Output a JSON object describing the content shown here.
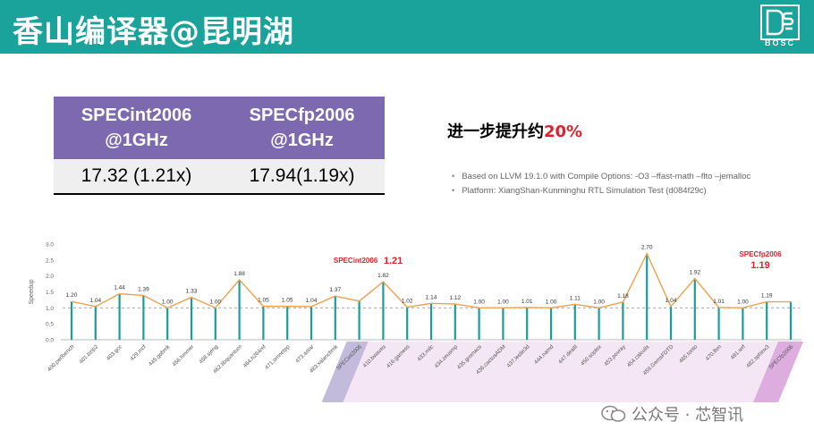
{
  "header": {
    "title": "香山编译器@昆明湖",
    "logo_text": "BOSC"
  },
  "table": {
    "headers": [
      "SPECint2006\n@1GHz",
      "SPECfp2006\n@1GHz"
    ],
    "header_lines": [
      [
        "SPECint2006",
        "@1GHz"
      ],
      [
        "SPECfp2006",
        "@1GHz"
      ]
    ],
    "values": [
      "17.32 (1.21x)",
      "17.94(1.19x)"
    ]
  },
  "headline": {
    "text": "进一步提升约",
    "percent": "20%"
  },
  "bullets": [
    "Based on LLVM 19.1.0 with Compile Options: -O3 –ffast-math –flto –jemalloc",
    "Platform:  XiangShan-Kunminghu RTL Simulation Test (d084f29c)"
  ],
  "watermark": "公众号 · 芯智讯",
  "colors": {
    "header": "#1aa39a",
    "table_header": "#7d69b0",
    "line": "#f0a050",
    "bar": "#1a9f96",
    "highlight": "#e0202c"
  },
  "chart_data": {
    "type": "bar",
    "ylabel": "Speedup",
    "ylim": [
      0,
      3.0
    ],
    "yticks": [
      "0.0",
      "0.5",
      "1.0",
      "1.5",
      "2.0",
      "2.5",
      "3.0"
    ],
    "reference_line": 1.0,
    "categories": [
      "400.perlbench",
      "401.bzip2",
      "403.gcc",
      "429.mcf",
      "445.gobmk",
      "456.hmmer",
      "458.sjeng",
      "462.libquantum",
      "464.h264ref",
      "471.omnetpp",
      "473.astar",
      "483.xalancbmk",
      "SPECint2006",
      "410.bwaves",
      "416.gamess",
      "433.milc",
      "434.zeusmp",
      "435.gromacs",
      "436.cactusADM",
      "437.leslie3d",
      "444.namd",
      "447.dealII",
      "450.soplex",
      "453.povray",
      "454.calculix",
      "459.GemsFDTD",
      "465.tonto",
      "470.lbm",
      "481.wrf",
      "482.sphinx3",
      "SPECfp2006"
    ],
    "values": [
      1.2,
      1.04,
      1.44,
      1.39,
      1.0,
      1.33,
      1.0,
      1.88,
      1.05,
      1.05,
      1.04,
      1.37,
      1.21,
      1.82,
      1.02,
      1.14,
      1.12,
      1.0,
      1.0,
      1.01,
      1.0,
      1.11,
      1.0,
      1.18,
      2.7,
      1.04,
      1.92,
      1.01,
      1.0,
      1.19,
      1.19
    ],
    "value_labels": [
      "1.20",
      "1.04",
      "1.44",
      "1.39",
      "1.00",
      "1.33",
      "1.00",
      "1.88",
      "1.05",
      "1.05",
      "1.04",
      "1.37",
      "",
      "1.82",
      "1.02",
      "1.14",
      "1.12",
      "1.00",
      "1.00",
      "1.01",
      "1.00",
      "1.11",
      "1.00",
      "1.18",
      "2.70",
      "1.04",
      "1.92",
      "1.01",
      "1.00",
      "1.19",
      ""
    ],
    "annotations": [
      {
        "category": "SPECint2006",
        "label": "SPECint2006",
        "value_text": "1.21"
      },
      {
        "category": "SPECfp2006",
        "label": "SPECfp2006",
        "value_text": "1.19"
      }
    ],
    "style": {
      "marks": "bar+line",
      "grid": false
    }
  }
}
